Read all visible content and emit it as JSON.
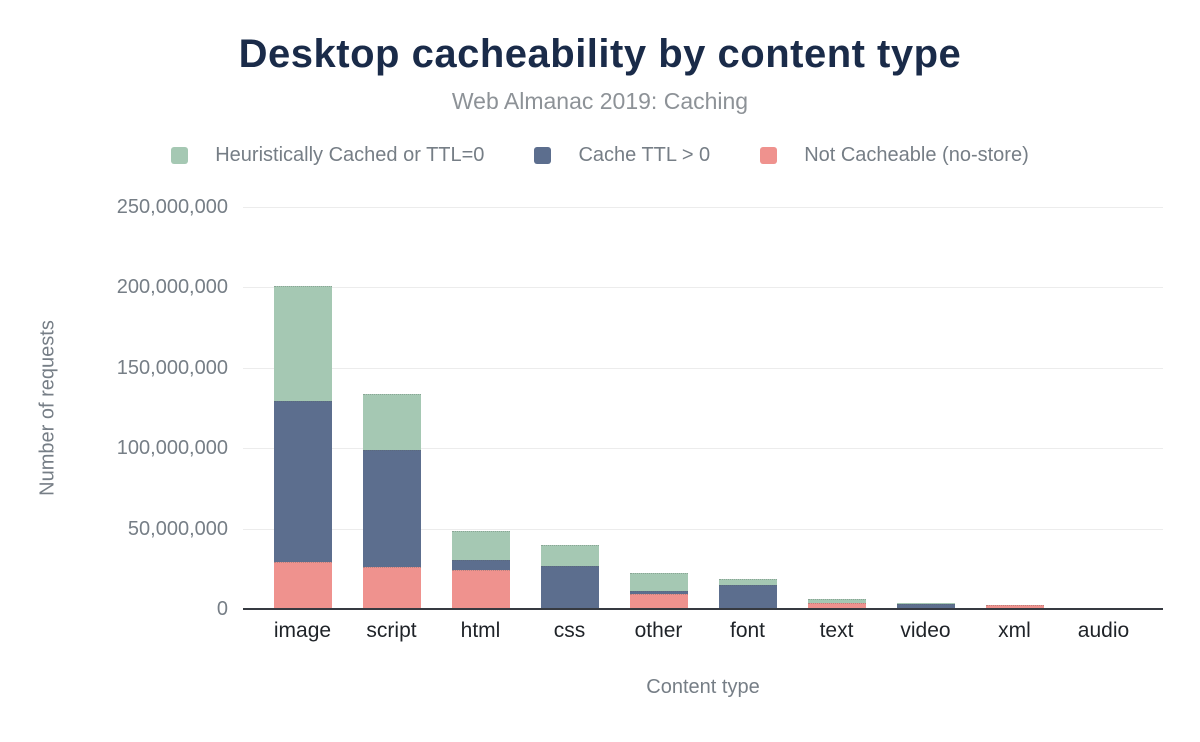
{
  "title": "Desktop cacheability by content type",
  "subtitle": "Web Almanac 2019: Caching",
  "legend": [
    {
      "label": "Heuristically Cached or TTL=0",
      "color": "#a5c8b3",
      "icon": "legend-swatch-green"
    },
    {
      "label": "Cache TTL > 0",
      "color": "#5c6e8e",
      "icon": "legend-swatch-blue"
    },
    {
      "label": "Not Cacheable (no-store)",
      "color": "#ef928e",
      "icon": "legend-swatch-pink"
    }
  ],
  "chart_data": {
    "type": "bar",
    "stacked": true,
    "title": "Desktop cacheability by content type",
    "subtitle": "Web Almanac 2019: Caching",
    "xlabel": "Content type",
    "ylabel": "Number of requests",
    "categories": [
      "image",
      "script",
      "html",
      "css",
      "other",
      "font",
      "text",
      "video",
      "xml",
      "audio"
    ],
    "series": [
      {
        "name": "Not Cacheable (no-store)",
        "color": "#ef928e",
        "values": [
          29000000,
          26000000,
          24000000,
          0,
          9500000,
          0,
          3700000,
          0,
          2300000,
          100000
        ]
      },
      {
        "name": "Cache TTL > 0",
        "color": "#5c6e8e",
        "values": [
          100500000,
          73000000,
          6500000,
          26500000,
          1700000,
          15000000,
          0,
          3000000,
          200000,
          100000
        ]
      },
      {
        "name": "Heuristically Cached or TTL=0",
        "color": "#a5c8b3",
        "values": [
          71500000,
          35000000,
          18000000,
          13500000,
          11300000,
          3500000,
          2300000,
          1000000,
          0,
          100000
        ]
      }
    ],
    "totals": [
      201000000,
      134000000,
      48500000,
      40000000,
      22500000,
      18500000,
      6000000,
      4000000,
      2500000,
      300000
    ],
    "y_ticks": [
      "250,000,000",
      "200,000,000",
      "150,000,000",
      "100,000,000",
      "50,000,000",
      "0"
    ],
    "ylim": [
      0,
      250000000
    ],
    "grid": true,
    "legend_position": "top"
  },
  "colors": {
    "title": "#1a2b49",
    "subtitle": "#8d9297",
    "axis_text": "#767e86",
    "category_text": "#1f2328",
    "axis_line": "#363a41",
    "gridline": "#ececec",
    "background": "#ffffff"
  }
}
